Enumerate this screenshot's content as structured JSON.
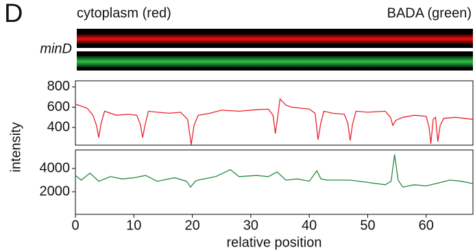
{
  "panel_label": "D",
  "image_labels": {
    "left": "cytoplasm (red)",
    "right": "BADA (green)",
    "strain": "minD"
  },
  "chart_data": [
    {
      "type": "line",
      "y_label": "intensity",
      "x": [
        0,
        1,
        2,
        3,
        3.6,
        4,
        4.4,
        5,
        7,
        9,
        10.5,
        11.1,
        11.5,
        11.9,
        12.5,
        14,
        16,
        18,
        19.2,
        19.8,
        20.3,
        21,
        23,
        25,
        28,
        31,
        33,
        33.8,
        34.2,
        34.6,
        35,
        36,
        37,
        40,
        41,
        41.5,
        42,
        42.5,
        44,
        46,
        46.6,
        47,
        47.4,
        48,
        50,
        53,
        53.9,
        54.3,
        54.8,
        56,
        58,
        60,
        60.5,
        60.8,
        61.2,
        61.6,
        62,
        62.4,
        63,
        65,
        68
      ],
      "series": [
        {
          "color": "#e8202a",
          "values": [
            630,
            610,
            590,
            520,
            420,
            300,
            440,
            560,
            520,
            530,
            520,
            430,
            300,
            420,
            560,
            550,
            540,
            550,
            480,
            230,
            420,
            520,
            540,
            570,
            560,
            575,
            580,
            520,
            340,
            500,
            680,
            620,
            600,
            580,
            540,
            280,
            450,
            560,
            540,
            530,
            440,
            270,
            430,
            560,
            550,
            560,
            500,
            420,
            470,
            500,
            520,
            510,
            400,
            240,
            480,
            500,
            260,
            420,
            490,
            500,
            480
          ]
        }
      ],
      "xlim": [
        0,
        68
      ],
      "ylim": [
        225,
        860
      ],
      "yticks": [
        400,
        600,
        800
      ]
    },
    {
      "type": "line",
      "x_label": "relative position",
      "x": [
        0,
        1,
        2.5,
        4,
        6,
        8,
        10,
        12,
        14,
        17,
        19,
        19.7,
        20.5,
        21,
        24,
        26.5,
        28,
        31,
        33,
        34.5,
        36,
        38,
        40,
        41.3,
        42,
        43,
        47,
        50,
        53,
        54,
        54.6,
        55.2,
        56,
        58,
        60,
        62.5,
        64,
        66,
        68
      ],
      "series": [
        {
          "color": "#1f8a3c",
          "values": [
            3400,
            3000,
            3600,
            2900,
            3300,
            3100,
            3200,
            3400,
            2900,
            3200,
            2900,
            2400,
            2900,
            3000,
            3300,
            3900,
            3300,
            3400,
            3300,
            3700,
            3000,
            3100,
            2900,
            3800,
            3100,
            3000,
            3000,
            2800,
            2600,
            2900,
            5200,
            3000,
            2400,
            2600,
            2500,
            2800,
            3000,
            2900,
            2700
          ]
        }
      ],
      "xlim": [
        0,
        68
      ],
      "ylim": [
        60,
        5590
      ],
      "yticks": [
        2000,
        4000
      ],
      "xticks": [
        0,
        10,
        20,
        30,
        40,
        50,
        60
      ]
    }
  ]
}
